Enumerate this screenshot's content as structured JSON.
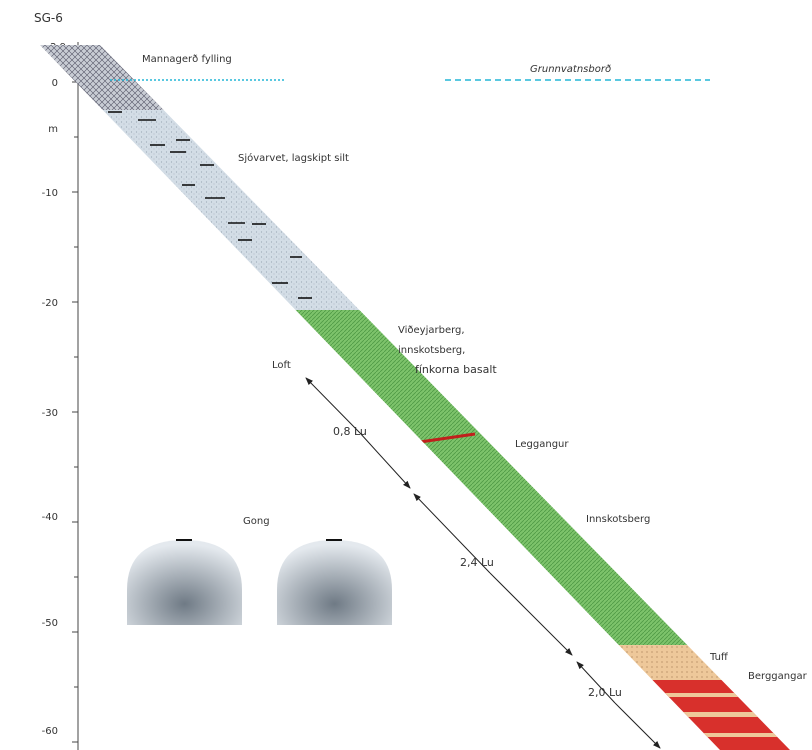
{
  "title": "SG-6",
  "depth_axis": {
    "labels": [
      "2,9",
      "0",
      "m",
      "-10",
      "-20",
      "-30",
      "-40",
      "-50",
      "-60"
    ]
  },
  "annotations": {
    "fill": "Mannagerð fylling",
    "groundwater": "Grunnvatnsborð",
    "silt": "Sjóvarvet, lagskipt silt",
    "basalt": [
      "Viðeyjarberg,",
      "innskotsberg,",
      "fínkorna basalt"
    ],
    "air": "Loft",
    "dist1": "0,8 Lu",
    "sheet": "Leggangur",
    "intrusive": "Innskotsberg",
    "tunnel": "Gong",
    "dist2": "2,4 Lu",
    "dist3": "2,0 Lu",
    "tuff": "Tuff",
    "dykes": "Berggangar"
  }
}
